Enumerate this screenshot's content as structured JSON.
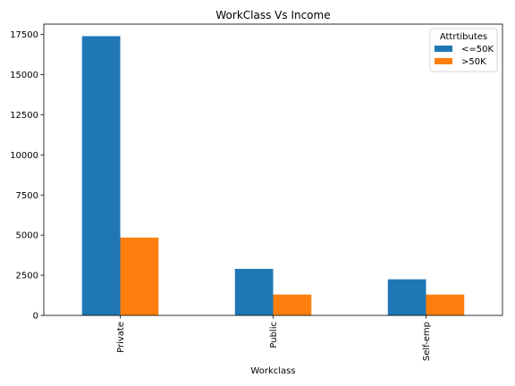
{
  "chart_data": {
    "type": "bar",
    "title": "WorkClass Vs Income",
    "xlabel": "Workclass",
    "ylabel": "",
    "categories": [
      "Private",
      "Public",
      "Self-emp"
    ],
    "series": [
      {
        "name": "<=50K",
        "values": [
          17400,
          2900,
          2250
        ],
        "color": "#1f77b4"
      },
      {
        "name": ">50K",
        "values": [
          4850,
          1300,
          1300
        ],
        "color": "#ff7f0e"
      }
    ],
    "ylim": [
      0,
      18150
    ],
    "yticks": [
      0,
      2500,
      5000,
      7500,
      10000,
      12500,
      15000,
      17500
    ],
    "legend": {
      "title": "Attrtibutes",
      "placement": "top-right"
    },
    "grid": false
  }
}
